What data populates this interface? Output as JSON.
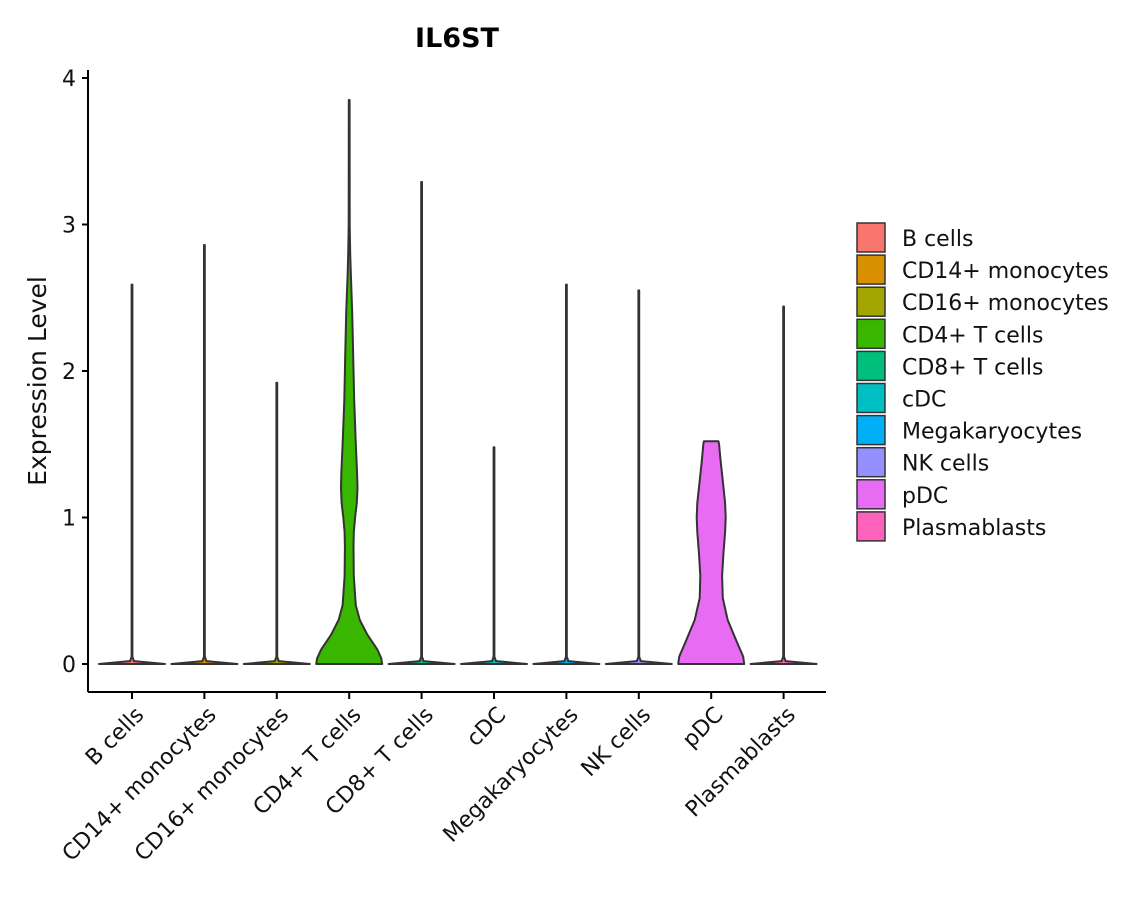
{
  "chart_data": {
    "type": "violin",
    "title": "IL6ST",
    "xlabel": "",
    "ylabel": "Expression Level",
    "ylim": [
      -0.2,
      4.05
    ],
    "yticks": [
      "0",
      "1",
      "2",
      "3",
      "4"
    ],
    "categories": [
      "B cells",
      "CD14+ monocytes",
      "CD16+ monocytes",
      "CD4+ T cells",
      "CD8+ T cells",
      "cDC",
      "Megakaryocytes",
      "NK cells",
      "pDC",
      "Plasmablasts"
    ],
    "colors": [
      "#F8766D",
      "#D89000",
      "#A3A500",
      "#39B600",
      "#00BF7D",
      "#00BFC4",
      "#00B0F6",
      "#9590FF",
      "#E76BF3",
      "#FF62BC"
    ],
    "max_values": [
      2.59,
      2.86,
      1.92,
      3.85,
      3.29,
      1.48,
      2.59,
      2.55,
      1.52,
      2.44
    ],
    "density_profiles": [
      [
        [
          0,
          1.0
        ],
        [
          0.02,
          0.06
        ],
        [
          0.05,
          0.012
        ],
        [
          2.59,
          0.012
        ]
      ],
      [
        [
          0,
          1.0
        ],
        [
          0.02,
          0.06
        ],
        [
          0.05,
          0.012
        ],
        [
          2.86,
          0.012
        ]
      ],
      [
        [
          0,
          1.0
        ],
        [
          0.02,
          0.06
        ],
        [
          0.05,
          0.012
        ],
        [
          1.92,
          0.012
        ]
      ],
      [
        [
          0,
          1.0
        ],
        [
          0.04,
          0.97
        ],
        [
          0.1,
          0.85
        ],
        [
          0.2,
          0.55
        ],
        [
          0.3,
          0.32
        ],
        [
          0.4,
          0.2
        ],
        [
          0.6,
          0.14
        ],
        [
          0.8,
          0.13
        ],
        [
          0.9,
          0.14
        ],
        [
          1.0,
          0.18
        ],
        [
          1.1,
          0.23
        ],
        [
          1.2,
          0.25
        ],
        [
          1.3,
          0.24
        ],
        [
          1.5,
          0.2
        ],
        [
          1.8,
          0.15
        ],
        [
          2.1,
          0.12
        ],
        [
          2.4,
          0.09
        ],
        [
          2.65,
          0.05
        ],
        [
          2.8,
          0.03
        ],
        [
          3.0,
          0.015
        ],
        [
          3.85,
          0.012
        ]
      ],
      [
        [
          0,
          1.0
        ],
        [
          0.02,
          0.06
        ],
        [
          0.05,
          0.012
        ],
        [
          3.29,
          0.012
        ]
      ],
      [
        [
          0,
          1.0
        ],
        [
          0.02,
          0.06
        ],
        [
          0.05,
          0.012
        ],
        [
          1.48,
          0.012
        ]
      ],
      [
        [
          0,
          1.0
        ],
        [
          0.02,
          0.06
        ],
        [
          0.05,
          0.012
        ],
        [
          2.59,
          0.012
        ]
      ],
      [
        [
          0,
          1.0
        ],
        [
          0.02,
          0.06
        ],
        [
          0.05,
          0.012
        ],
        [
          2.55,
          0.012
        ]
      ],
      [
        [
          0,
          1.0
        ],
        [
          0.05,
          0.97
        ],
        [
          0.15,
          0.78
        ],
        [
          0.3,
          0.5
        ],
        [
          0.45,
          0.35
        ],
        [
          0.6,
          0.33
        ],
        [
          0.75,
          0.37
        ],
        [
          0.9,
          0.42
        ],
        [
          1.0,
          0.44
        ],
        [
          1.1,
          0.42
        ],
        [
          1.25,
          0.35
        ],
        [
          1.4,
          0.28
        ],
        [
          1.5,
          0.24
        ],
        [
          1.52,
          0.22
        ]
      ],
      [
        [
          0,
          1.0
        ],
        [
          0.02,
          0.06
        ],
        [
          0.05,
          0.012
        ],
        [
          2.44,
          0.012
        ]
      ]
    ],
    "legend": {
      "position": "right",
      "entries": [
        "B cells",
        "CD14+ monocytes",
        "CD16+ monocytes",
        "CD4+ T cells",
        "CD8+ T cells",
        "cDC",
        "Megakaryocytes",
        "NK cells",
        "pDC",
        "Plasmablasts"
      ]
    }
  }
}
